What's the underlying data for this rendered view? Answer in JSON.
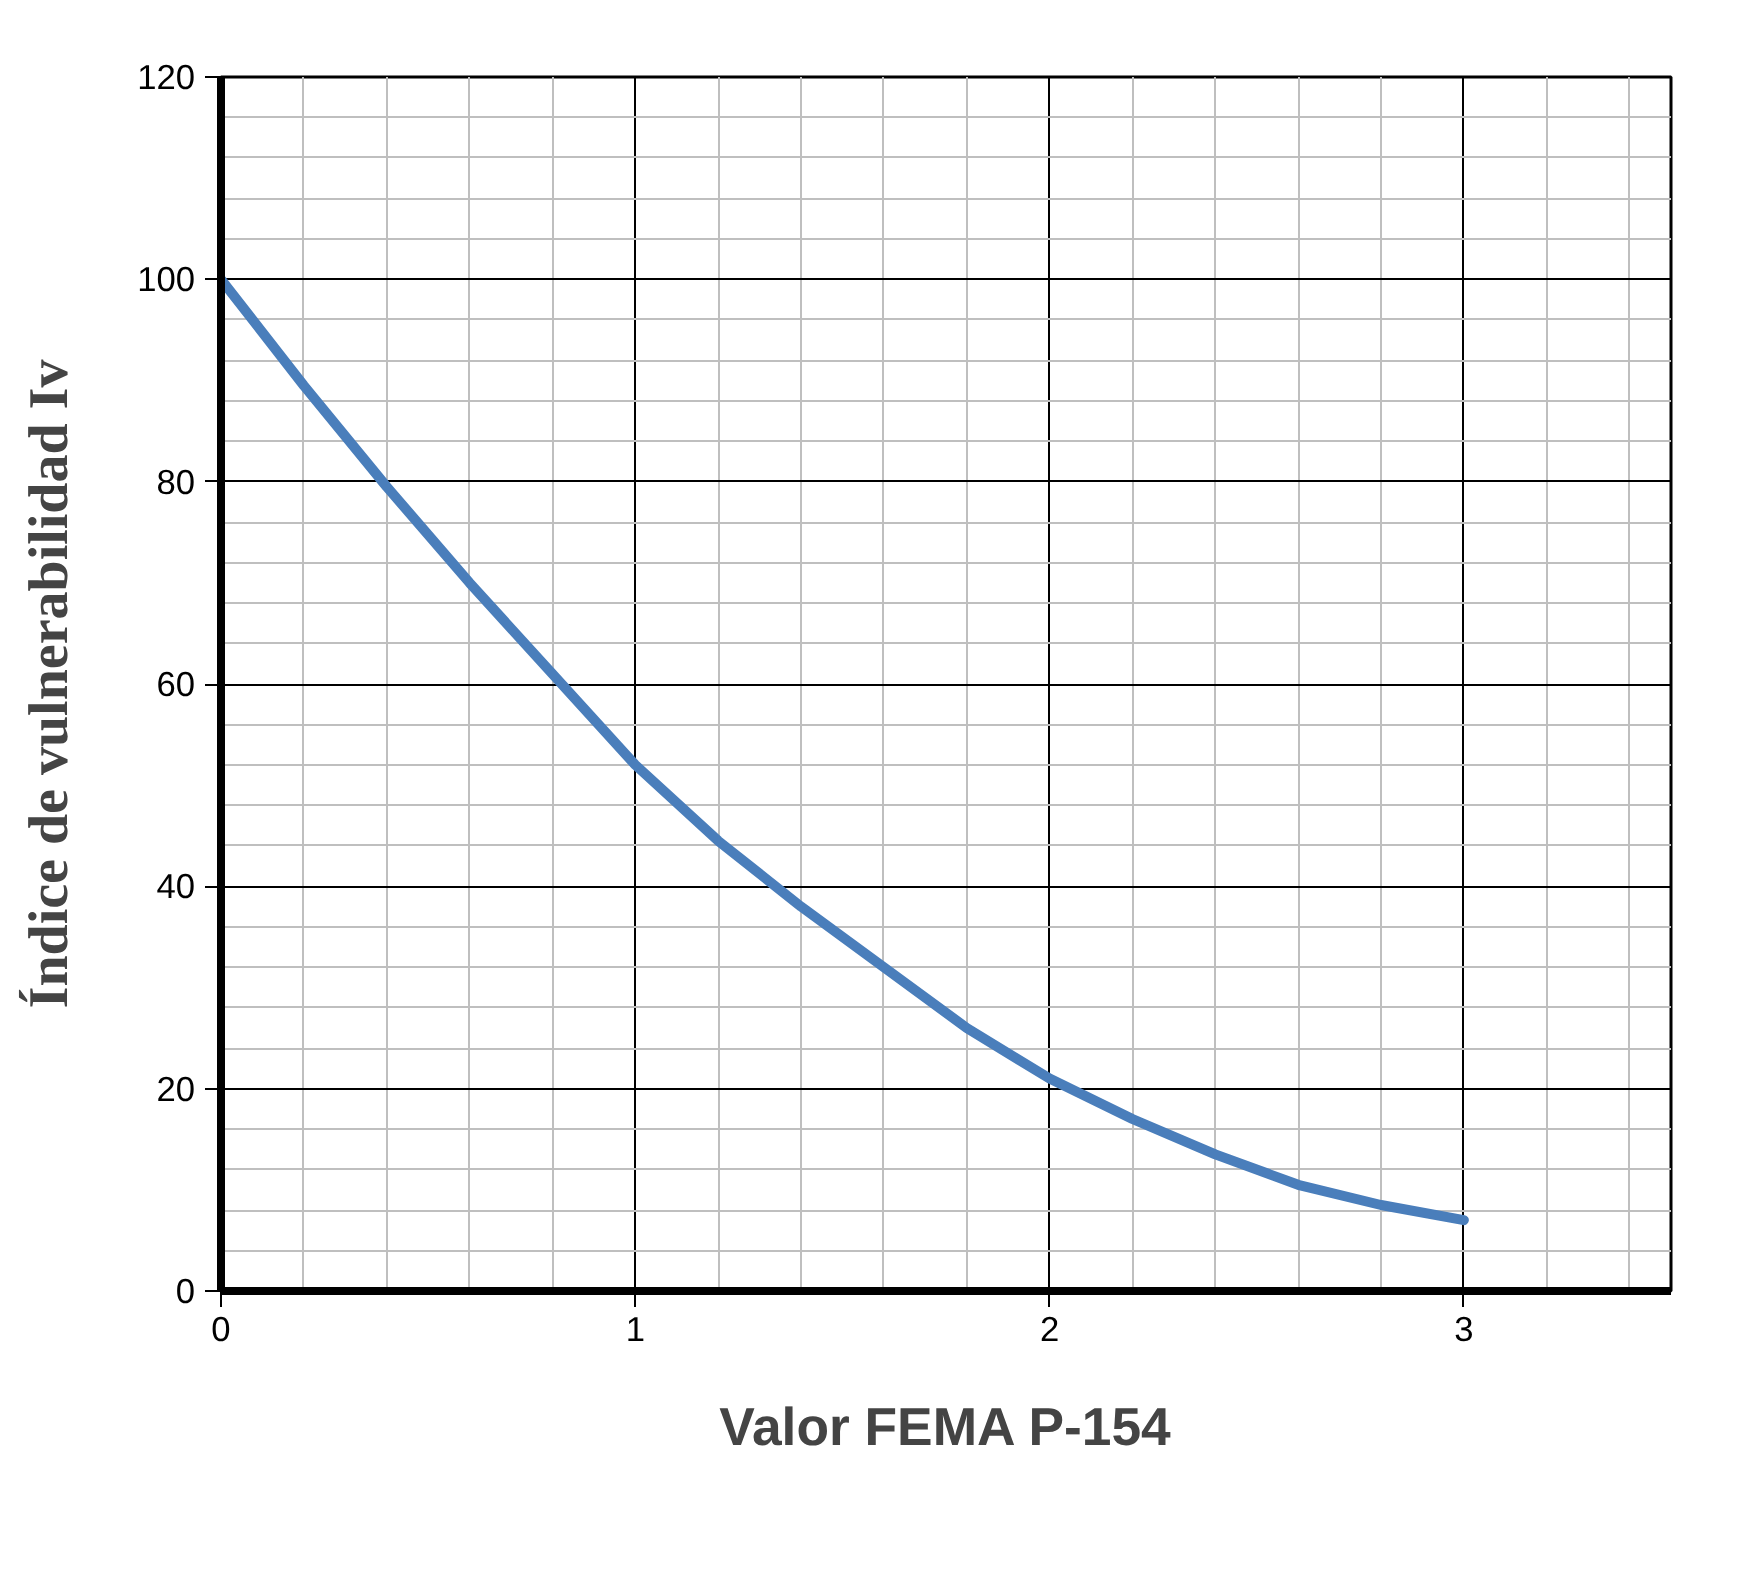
{
  "chart_data": {
    "type": "line",
    "xlabel": "Valor FEMA P-154",
    "ylabel": "Índice de vulnerabilidad Iv",
    "x": [
      0,
      0.2,
      0.4,
      0.6,
      0.8,
      1.0,
      1.2,
      1.4,
      1.6,
      1.8,
      2.0,
      2.2,
      2.4,
      2.6,
      2.8,
      3.0
    ],
    "series": [
      {
        "color": "#4a7ebb",
        "values": [
          100,
          89.5,
          79.5,
          70,
          61,
          52,
          44.5,
          38,
          32,
          26,
          21,
          17,
          13.5,
          10.5,
          8.5,
          7
        ]
      }
    ],
    "xlim": [
      0,
      3.5
    ],
    "xticks": [
      0,
      1,
      2,
      3
    ],
    "ylim": [
      0,
      120
    ],
    "yticks": [
      0,
      20,
      40,
      60,
      80,
      100,
      120
    ],
    "grid": true,
    "marker": "none",
    "line_style": "solid"
  }
}
